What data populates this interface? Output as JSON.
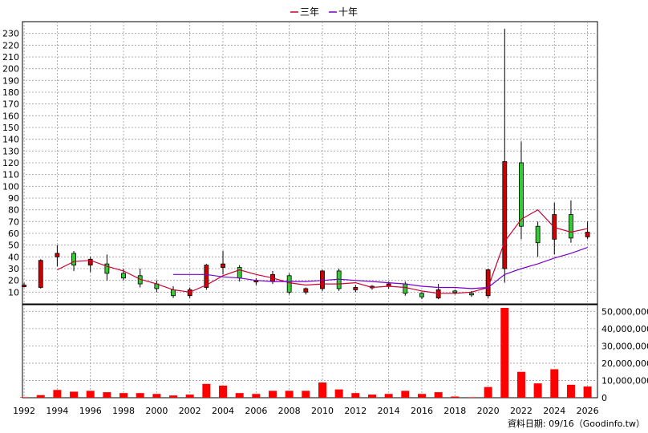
{
  "legend": [
    {
      "name": "三年",
      "color": "#cc0033"
    },
    {
      "name": "十年",
      "color": "#7700cc"
    }
  ],
  "footer_note": "資料日期: 09/16（Goodinfo.tw）",
  "colors": {
    "up_candle": "#cc0000",
    "down_candle": "#33cc33",
    "volume_bar": "#ff0000",
    "grid": "#999999"
  },
  "chart_data": [
    {
      "type": "candlestick",
      "ylim": [
        0,
        240
      ],
      "yticks": [
        10,
        20,
        30,
        40,
        50,
        60,
        70,
        80,
        90,
        100,
        110,
        120,
        130,
        140,
        150,
        160,
        170,
        180,
        190,
        200,
        210,
        220,
        230
      ],
      "years": [
        1992,
        1993,
        1994,
        1995,
        1996,
        1997,
        1998,
        1999,
        2000,
        2001,
        2002,
        2003,
        2004,
        2005,
        2006,
        2007,
        2008,
        2009,
        2010,
        2011,
        2012,
        2013,
        2014,
        2015,
        2016,
        2017,
        2018,
        2019,
        2020,
        2021,
        2022,
        2023,
        2024,
        2025,
        2026
      ],
      "candles": [
        {
          "year": 1992,
          "open": 15,
          "high": 18,
          "low": 14,
          "close": 16
        },
        {
          "year": 1993,
          "open": 14,
          "high": 38,
          "low": 13,
          "close": 37
        },
        {
          "year": 1994,
          "open": 40,
          "high": 50,
          "low": 32,
          "close": 43
        },
        {
          "year": 1995,
          "open": 43,
          "high": 45,
          "low": 28,
          "close": 33
        },
        {
          "year": 1996,
          "open": 33,
          "high": 40,
          "low": 27,
          "close": 38
        },
        {
          "year": 1997,
          "open": 34,
          "high": 42,
          "low": 20,
          "close": 26
        },
        {
          "year": 1998,
          "open": 26,
          "high": 30,
          "low": 20,
          "close": 22
        },
        {
          "year": 1999,
          "open": 24,
          "high": 30,
          "low": 14,
          "close": 17
        },
        {
          "year": 2000,
          "open": 17,
          "high": 20,
          "low": 10,
          "close": 13
        },
        {
          "year": 2001,
          "open": 12,
          "high": 15,
          "low": 5,
          "close": 7
        },
        {
          "year": 2002,
          "open": 7,
          "high": 14,
          "low": 5,
          "close": 12
        },
        {
          "year": 2003,
          "open": 14,
          "high": 34,
          "low": 12,
          "close": 33
        },
        {
          "year": 2004,
          "open": 31,
          "high": 45,
          "low": 25,
          "close": 34
        },
        {
          "year": 2005,
          "open": 31,
          "high": 33,
          "low": 19,
          "close": 22
        },
        {
          "year": 2006,
          "open": 19,
          "high": 22,
          "low": 16,
          "close": 20
        },
        {
          "year": 2007,
          "open": 19,
          "high": 28,
          "low": 17,
          "close": 25
        },
        {
          "year": 2008,
          "open": 24,
          "high": 26,
          "low": 8,
          "close": 10
        },
        {
          "year": 2009,
          "open": 10,
          "high": 14,
          "low": 8,
          "close": 13
        },
        {
          "year": 2010,
          "open": 13,
          "high": 29,
          "low": 11,
          "close": 28
        },
        {
          "year": 2011,
          "open": 28,
          "high": 30,
          "low": 11,
          "close": 13
        },
        {
          "year": 2012,
          "open": 12,
          "high": 16,
          "low": 10,
          "close": 14
        },
        {
          "year": 2013,
          "open": 14,
          "high": 16,
          "low": 12,
          "close": 15
        },
        {
          "year": 2014,
          "open": 15,
          "high": 19,
          "low": 13,
          "close": 17
        },
        {
          "year": 2015,
          "open": 17,
          "high": 19,
          "low": 7,
          "close": 9
        },
        {
          "year": 2016,
          "open": 9,
          "high": 10,
          "low": 4,
          "close": 6
        },
        {
          "year": 2017,
          "open": 5,
          "high": 17,
          "low": 4,
          "close": 12
        },
        {
          "year": 2018,
          "open": 11,
          "high": 12,
          "low": 8,
          "close": 10
        },
        {
          "year": 2019,
          "open": 9,
          "high": 11,
          "low": 6,
          "close": 8
        },
        {
          "year": 2020,
          "open": 7,
          "high": 30,
          "low": 5,
          "close": 29
        },
        {
          "year": 2021,
          "open": 30,
          "high": 234,
          "low": 18,
          "close": 121
        },
        {
          "year": 2022,
          "open": 120,
          "high": 138,
          "low": 55,
          "close": 66
        },
        {
          "year": 2023,
          "open": 66,
          "high": 70,
          "low": 40,
          "close": 52
        },
        {
          "year": 2024,
          "open": 55,
          "high": 86,
          "low": 42,
          "close": 76
        },
        {
          "year": 2025,
          "open": 76,
          "high": 88,
          "low": 52,
          "close": 56
        },
        {
          "year": 2026,
          "open": 57,
          "high": 70,
          "low": 55,
          "close": 61
        }
      ],
      "ma_3yr": [
        {
          "year": 1994,
          "value": 29
        },
        {
          "year": 1995,
          "value": 36
        },
        {
          "year": 1996,
          "value": 37
        },
        {
          "year": 1997,
          "value": 32
        },
        {
          "year": 1998,
          "value": 28
        },
        {
          "year": 1999,
          "value": 21
        },
        {
          "year": 2000,
          "value": 17
        },
        {
          "year": 2001,
          "value": 12
        },
        {
          "year": 2002,
          "value": 10
        },
        {
          "year": 2003,
          "value": 16
        },
        {
          "year": 2004,
          "value": 24
        },
        {
          "year": 2005,
          "value": 29
        },
        {
          "year": 2006,
          "value": 25
        },
        {
          "year": 2007,
          "value": 22
        },
        {
          "year": 2008,
          "value": 18
        },
        {
          "year": 2009,
          "value": 16
        },
        {
          "year": 2010,
          "value": 17
        },
        {
          "year": 2011,
          "value": 17
        },
        {
          "year": 2012,
          "value": 18
        },
        {
          "year": 2013,
          "value": 14
        },
        {
          "year": 2014,
          "value": 15
        },
        {
          "year": 2015,
          "value": 14
        },
        {
          "year": 2016,
          "value": 11
        },
        {
          "year": 2017,
          "value": 9
        },
        {
          "year": 2018,
          "value": 9
        },
        {
          "year": 2019,
          "value": 10
        },
        {
          "year": 2020,
          "value": 14
        },
        {
          "year": 2021,
          "value": 53
        },
        {
          "year": 2022,
          "value": 72
        },
        {
          "year": 2023,
          "value": 80
        },
        {
          "year": 2024,
          "value": 65
        },
        {
          "year": 2025,
          "value": 61
        },
        {
          "year": 2026,
          "value": 64
        }
      ],
      "ma_10yr": [
        {
          "year": 2001,
          "value": 25
        },
        {
          "year": 2002,
          "value": 25
        },
        {
          "year": 2003,
          "value": 25
        },
        {
          "year": 2004,
          "value": 23
        },
        {
          "year": 2005,
          "value": 22
        },
        {
          "year": 2006,
          "value": 20
        },
        {
          "year": 2007,
          "value": 19
        },
        {
          "year": 2008,
          "value": 19
        },
        {
          "year": 2009,
          "value": 19
        },
        {
          "year": 2010,
          "value": 20
        },
        {
          "year": 2011,
          "value": 21
        },
        {
          "year": 2012,
          "value": 20
        },
        {
          "year": 2013,
          "value": 19
        },
        {
          "year": 2014,
          "value": 18
        },
        {
          "year": 2015,
          "value": 17
        },
        {
          "year": 2016,
          "value": 15
        },
        {
          "year": 2017,
          "value": 14
        },
        {
          "year": 2018,
          "value": 14
        },
        {
          "year": 2019,
          "value": 13
        },
        {
          "year": 2020,
          "value": 14
        },
        {
          "year": 2021,
          "value": 25
        },
        {
          "year": 2022,
          "value": 30
        },
        {
          "year": 2023,
          "value": 34
        },
        {
          "year": 2024,
          "value": 39
        },
        {
          "year": 2025,
          "value": 43
        },
        {
          "year": 2026,
          "value": 48
        }
      ]
    },
    {
      "type": "bar",
      "ylim": [
        0,
        52000000
      ],
      "yticks": [
        0,
        10000000,
        20000000,
        30000000,
        40000000,
        50000000
      ],
      "ytick_labels": [
        "0",
        "10,000,000",
        "20,000,000",
        "30,000,000",
        "40,000,000",
        "50,000,000"
      ],
      "xtick_labels": [
        "1992",
        "1994",
        "1996",
        "1998",
        "2000",
        "2002",
        "2004",
        "2006",
        "2008",
        "2010",
        "2012",
        "2014",
        "2016",
        "2018",
        "2020",
        "2022",
        "2024",
        "2026"
      ],
      "volume": [
        {
          "year": 1992,
          "value": 300000
        },
        {
          "year": 1993,
          "value": 1500000
        },
        {
          "year": 1994,
          "value": 4500000
        },
        {
          "year": 1995,
          "value": 3500000
        },
        {
          "year": 1996,
          "value": 4000000
        },
        {
          "year": 1997,
          "value": 3200000
        },
        {
          "year": 1998,
          "value": 2700000
        },
        {
          "year": 1999,
          "value": 2700000
        },
        {
          "year": 2000,
          "value": 2200000
        },
        {
          "year": 2001,
          "value": 1300000
        },
        {
          "year": 2002,
          "value": 1800000
        },
        {
          "year": 2003,
          "value": 8000000
        },
        {
          "year": 2004,
          "value": 7000000
        },
        {
          "year": 2005,
          "value": 2700000
        },
        {
          "year": 2006,
          "value": 2200000
        },
        {
          "year": 2007,
          "value": 4000000
        },
        {
          "year": 2008,
          "value": 4000000
        },
        {
          "year": 2009,
          "value": 4000000
        },
        {
          "year": 2010,
          "value": 8800000
        },
        {
          "year": 2011,
          "value": 4800000
        },
        {
          "year": 2012,
          "value": 2700000
        },
        {
          "year": 2013,
          "value": 1800000
        },
        {
          "year": 2014,
          "value": 2200000
        },
        {
          "year": 2015,
          "value": 4000000
        },
        {
          "year": 2016,
          "value": 2200000
        },
        {
          "year": 2017,
          "value": 3200000
        },
        {
          "year": 2018,
          "value": 700000
        },
        {
          "year": 2019,
          "value": 300000
        },
        {
          "year": 2020,
          "value": 6200000
        },
        {
          "year": 2021,
          "value": 52000000
        },
        {
          "year": 2022,
          "value": 15000000
        },
        {
          "year": 2023,
          "value": 8300000
        },
        {
          "year": 2024,
          "value": 16500000
        },
        {
          "year": 2025,
          "value": 7500000
        },
        {
          "year": 2026,
          "value": 6500000
        }
      ]
    }
  ]
}
